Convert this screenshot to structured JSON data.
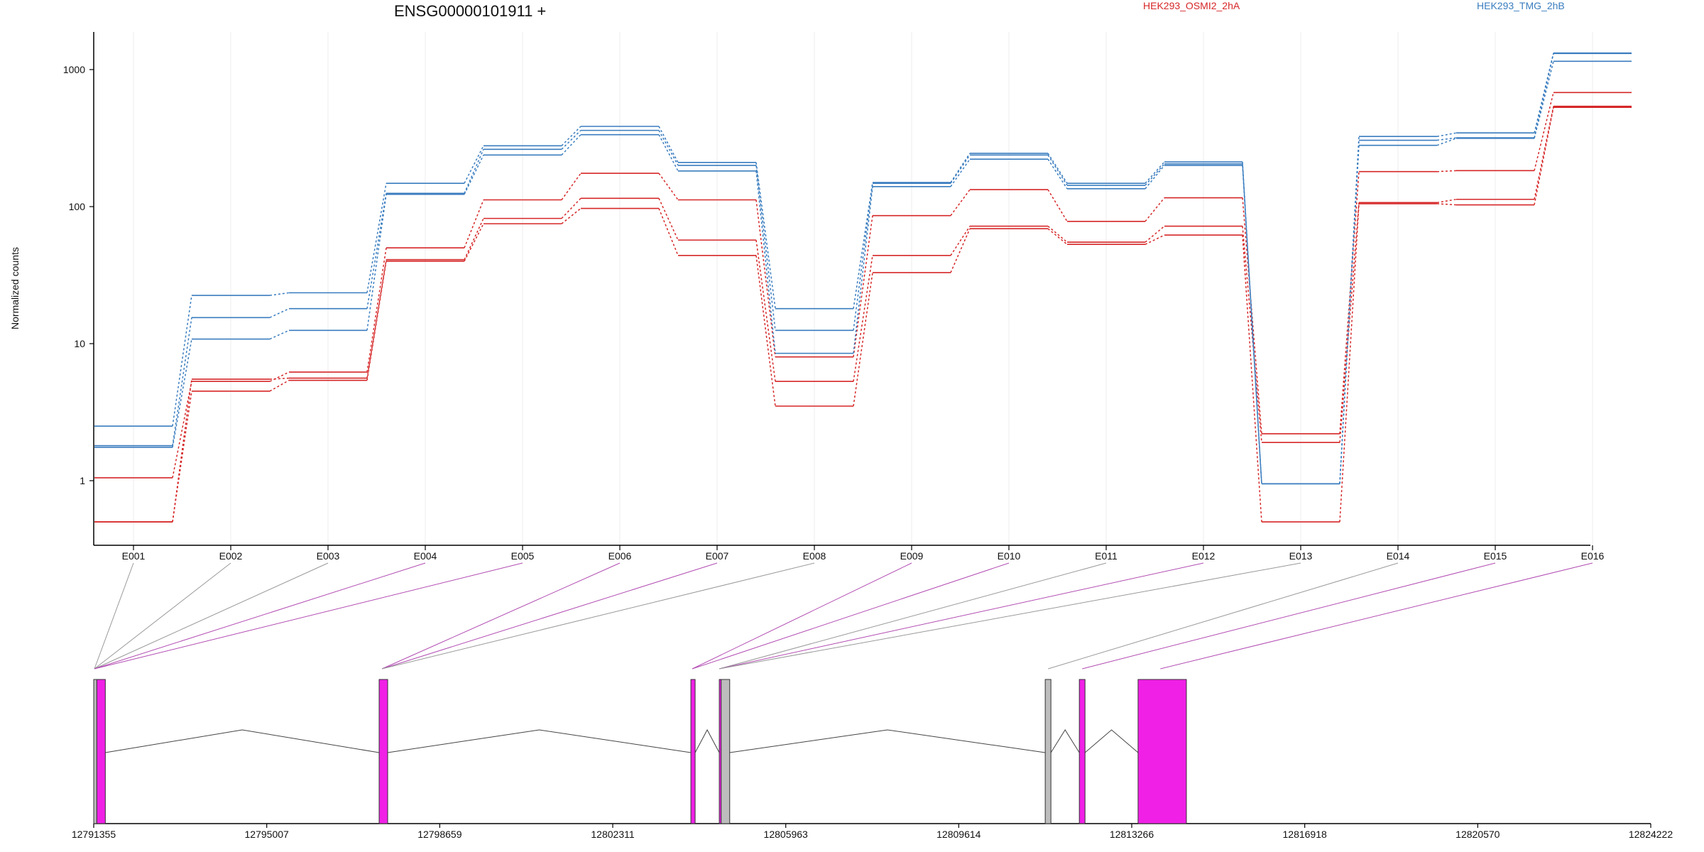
{
  "chart_data": {
    "type": "line",
    "title": "ENSG00000101911 +",
    "ylabel": "Normalized counts",
    "y_scale": "log",
    "ylim": [
      0.4,
      1800
    ],
    "y_ticks": [
      1,
      10,
      100,
      1000
    ],
    "y_tick_labels": [
      "1",
      "10",
      "100",
      "1000"
    ],
    "grid": "vertical",
    "legend_placement": "top-right",
    "categories": [
      "E001",
      "E002",
      "E003",
      "E004",
      "E005",
      "E006",
      "E007",
      "E008",
      "E009",
      "E010",
      "E011",
      "E012",
      "E013",
      "E014",
      "E015",
      "E016"
    ],
    "groups": [
      {
        "name": "HEK293_OSMI2_2hA",
        "color": "#d62728"
      },
      {
        "name": "HEK293_TMG_2hB",
        "color": "#3a7dbf"
      }
    ],
    "series": [
      {
        "group": "HEK293_OSMI2_2hA",
        "values": [
          1.05,
          5.3,
          6.2,
          50,
          112,
          175,
          112,
          8,
          86,
          133,
          78,
          116,
          2.2,
          180,
          183,
          680
        ]
      },
      {
        "group": "HEK293_OSMI2_2hA",
        "values": [
          0.5,
          5.5,
          5.6,
          41,
          82,
          115,
          57,
          5.3,
          44,
          72,
          55,
          72,
          1.9,
          107,
          113,
          540
        ]
      },
      {
        "group": "HEK293_OSMI2_2hA",
        "values": [
          0.5,
          4.5,
          5.4,
          40,
          75,
          97,
          44,
          3.5,
          33,
          69,
          53,
          62,
          0.5,
          105,
          103,
          530
        ]
      },
      {
        "group": "HEK293_TMG_2hB",
        "values": [
          2.5,
          22.5,
          23.5,
          148,
          278,
          385,
          210,
          18,
          150,
          245,
          148,
          212,
          0.95,
          325,
          345,
          1320
        ]
      },
      {
        "group": "HEK293_TMG_2hB",
        "values": [
          1.8,
          15.5,
          18,
          125,
          262,
          360,
          200,
          12.5,
          148,
          238,
          143,
          205,
          0.95,
          305,
          318,
          1310
        ]
      },
      {
        "group": "HEK293_TMG_2hB",
        "values": [
          1.75,
          10.8,
          12.5,
          123,
          238,
          335,
          182,
          8.5,
          140,
          222,
          135,
          200,
          0.95,
          280,
          315,
          1150
        ]
      }
    ],
    "gene_model": {
      "coord_ticks": [
        "12791355",
        "12795007",
        "12798659",
        "12802311",
        "12805963",
        "12809614",
        "12813266",
        "12816918",
        "12820570",
        "12824222"
      ],
      "coord_tick_values": [
        12791355,
        12795007,
        12798659,
        12802311,
        12805963,
        12809614,
        12813266,
        12816918,
        12820570,
        12824222
      ],
      "exons": [
        {
          "start": 12791355,
          "end": 12791420,
          "color": "#bdbdbd"
        },
        {
          "start": 12791420,
          "end": 12791600,
          "color": "#f020e6"
        },
        {
          "start": 12797380,
          "end": 12797560,
          "color": "#f020e6"
        },
        {
          "start": 12803960,
          "end": 12804050,
          "color": "#f020e6"
        },
        {
          "start": 12804560,
          "end": 12804600,
          "color": "#f020e6"
        },
        {
          "start": 12804600,
          "end": 12804780,
          "color": "#bdbdbd"
        },
        {
          "start": 12811440,
          "end": 12811560,
          "color": "#bdbdbd"
        },
        {
          "start": 12812160,
          "end": 12812280,
          "color": "#f020e6"
        },
        {
          "start": 12813400,
          "end": 12814420,
          "color": "#f020e6"
        }
      ],
      "exon_links": [
        {
          "exon": "E001",
          "pos": 12791370,
          "color": "#999999"
        },
        {
          "exon": "E002",
          "pos": 12791370,
          "color": "#999999"
        },
        {
          "exon": "E003",
          "pos": 12791370,
          "color": "#999999"
        },
        {
          "exon": "E004",
          "pos": 12791370,
          "color": "#b24cb2"
        },
        {
          "exon": "E005",
          "pos": 12791370,
          "color": "#b24cb2"
        },
        {
          "exon": "E006",
          "pos": 12797440,
          "color": "#b24cb2"
        },
        {
          "exon": "E007",
          "pos": 12797440,
          "color": "#b24cb2"
        },
        {
          "exon": "E008",
          "pos": 12797440,
          "color": "#999999"
        },
        {
          "exon": "E009",
          "pos": 12803990,
          "color": "#b24cb2"
        },
        {
          "exon": "E010",
          "pos": 12803990,
          "color": "#b24cb2"
        },
        {
          "exon": "E011",
          "pos": 12804560,
          "color": "#999999"
        },
        {
          "exon": "E012",
          "pos": 12804560,
          "color": "#b24cb2"
        },
        {
          "exon": "E013",
          "pos": 12804560,
          "color": "#999999"
        },
        {
          "exon": "E014",
          "pos": 12811500,
          "color": "#999999"
        },
        {
          "exon": "E015",
          "pos": 12812220,
          "color": "#b24cb2"
        },
        {
          "exon": "E016",
          "pos": 12813870,
          "color": "#b24cb2"
        }
      ]
    }
  }
}
